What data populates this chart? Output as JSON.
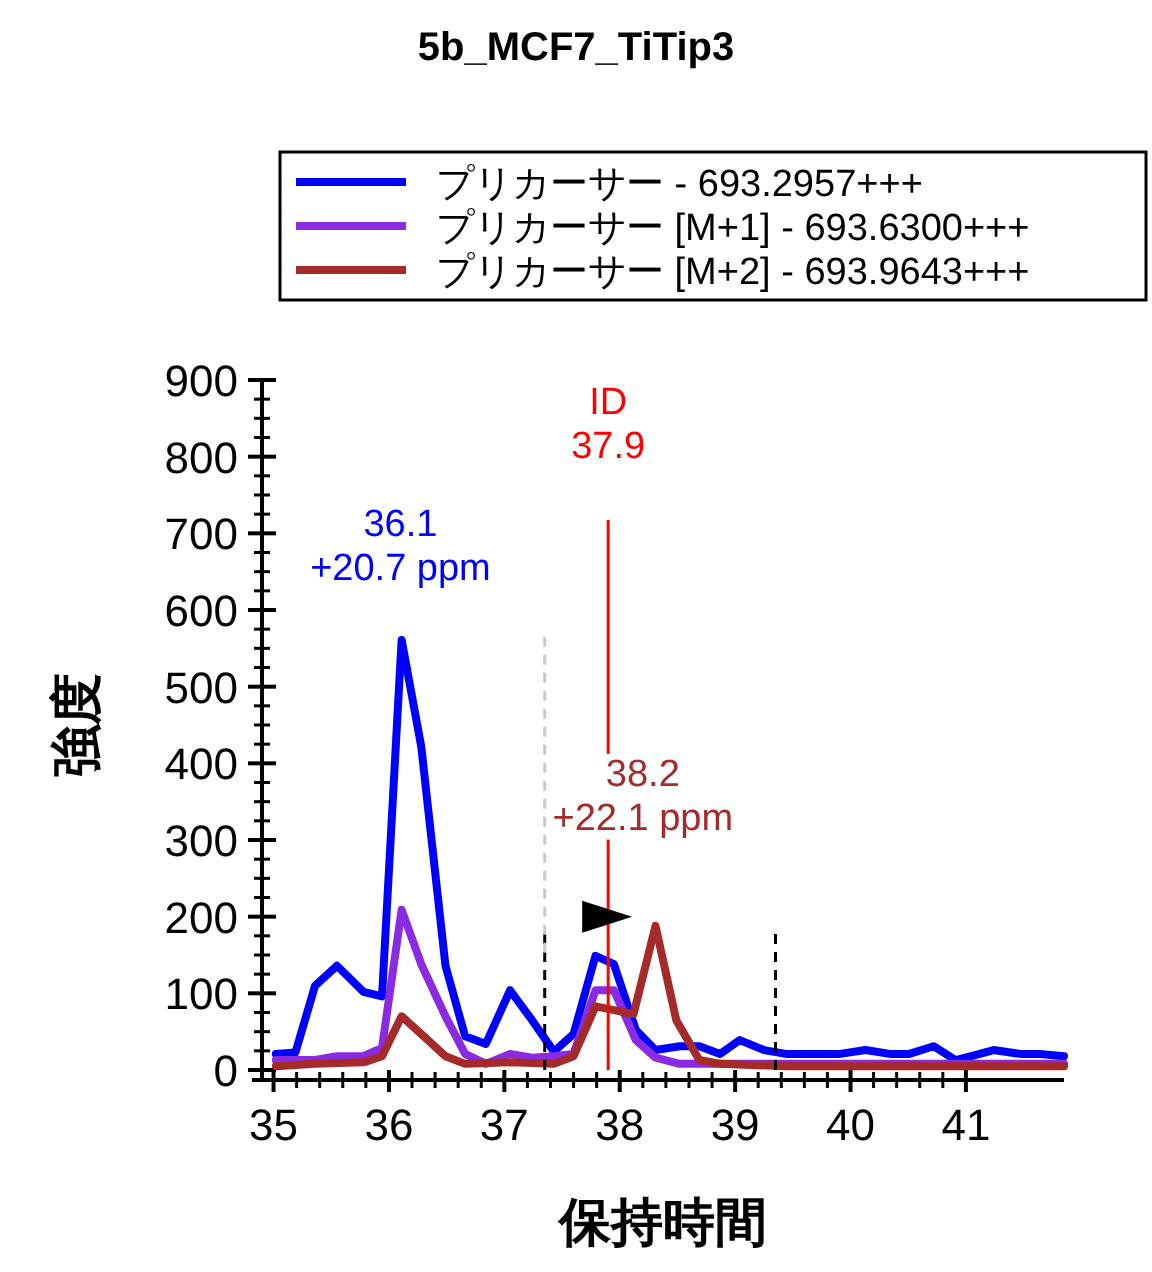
{
  "chart_data": {
    "type": "line",
    "title": "5b_MCF7_TiTip3",
    "xlabel": "保持時間",
    "ylabel": "強度",
    "xlim": [
      34.9,
      41.85
    ],
    "xticks": [
      35,
      36,
      37,
      38,
      39,
      40,
      41
    ],
    "ylim": [
      0,
      900
    ],
    "yticks": [
      0,
      100,
      200,
      300,
      400,
      500,
      600,
      700,
      800,
      900
    ],
    "legend": "top",
    "grid": false,
    "series": [
      {
        "name": "プリカーサー - 693.2957+++",
        "color": "#0000ff",
        "x": [
          35.02,
          35.19,
          35.36,
          35.55,
          35.78,
          35.94,
          36.11,
          36.28,
          36.49,
          36.66,
          36.84,
          37.05,
          37.24,
          37.43,
          37.6,
          37.79,
          37.95,
          38.14,
          38.31,
          38.52,
          38.69,
          38.87,
          39.04,
          39.25,
          39.44,
          39.73,
          39.91,
          40.13,
          40.34,
          40.51,
          40.72,
          40.91,
          41.12,
          41.24,
          41.47,
          41.64,
          41.85
        ],
        "values": [
          21,
          23,
          110,
          136,
          102,
          96,
          561,
          422,
          136,
          44,
          34,
          104,
          65,
          24,
          47,
          149,
          138,
          52,
          26,
          31,
          31,
          21,
          39,
          26,
          21,
          21,
          21,
          26,
          21,
          21,
          31,
          13,
          21,
          26,
          21,
          21,
          18
        ]
      },
      {
        "name": "プリカーサー [M+1] - 693.6300+++",
        "color": "#8a2be2",
        "x": [
          35.02,
          35.36,
          35.55,
          35.78,
          35.94,
          36.11,
          36.28,
          36.49,
          36.66,
          36.84,
          37.05,
          37.24,
          37.43,
          37.6,
          37.79,
          37.95,
          38.14,
          38.31,
          38.52,
          38.87,
          39.44,
          40.13,
          41.12,
          41.85
        ],
        "values": [
          13,
          13,
          18,
          18,
          29,
          209,
          138,
          70,
          21,
          8,
          21,
          16,
          18,
          21,
          104,
          104,
          39,
          16,
          8,
          8,
          8,
          8,
          8,
          8
        ]
      },
      {
        "name": "プリカーサー [M+2] - 693.9643+++",
        "color": "#a52a2a",
        "x": [
          35.02,
          35.36,
          35.78,
          35.94,
          36.11,
          36.28,
          36.49,
          36.66,
          37.05,
          37.43,
          37.6,
          37.79,
          37.95,
          38.12,
          38.31,
          38.49,
          38.69,
          38.87,
          39.44,
          40.5,
          41.85
        ],
        "values": [
          5,
          8,
          10,
          18,
          70,
          47,
          18,
          8,
          10,
          8,
          18,
          83,
          78,
          73,
          188,
          65,
          13,
          8,
          5,
          5,
          5
        ]
      }
    ],
    "ref_lines": [
      {
        "axis": "x",
        "value": 37.9,
        "label": "ID\n37.9",
        "color": "#ff0000",
        "line_style": "solid"
      },
      {
        "axis": "x",
        "value": 37.35,
        "color": "#000000",
        "line_style": "dashed"
      },
      {
        "axis": "x",
        "value": 39.35,
        "color": "#000000",
        "line_style": "dashed"
      },
      {
        "axis": "x",
        "value": 37.35,
        "color": "#c8c8c8",
        "line_style": "dashed"
      }
    ],
    "annotations": [
      {
        "text": "36.1\n+20.7 ppm",
        "x": 36.1,
        "y": 561
      },
      {
        "text": "38.2\n+22.1 ppm",
        "x": 38.2,
        "y": 188
      }
    ]
  }
}
